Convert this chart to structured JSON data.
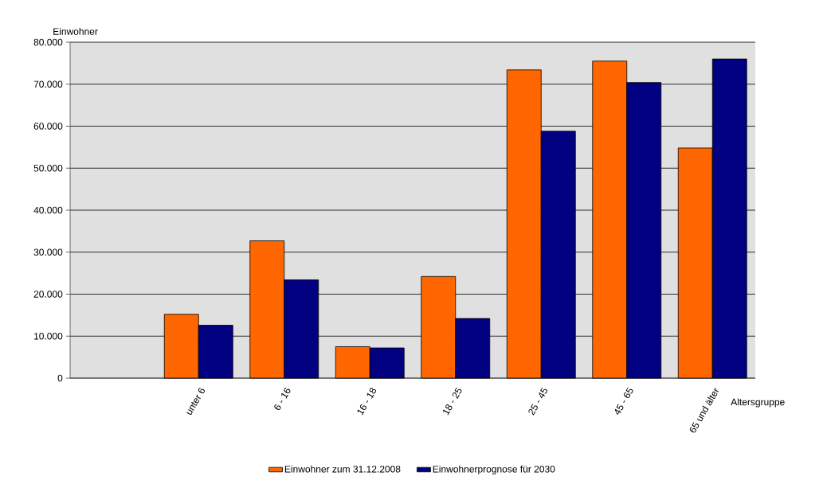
{
  "chart_data": {
    "type": "bar",
    "ylabel": "Einwohner",
    "xlabel": "Altersgruppe",
    "categories": [
      null,
      "unter 6",
      "6 - 16",
      "16 - 18",
      "18 - 25",
      "25 - 45",
      "45 - 65",
      "65 und älter"
    ],
    "series": [
      {
        "name": "Einwohner zum 31.12.2008",
        "color": "#ff6600",
        "values": [
          null,
          15200,
          32700,
          7500,
          24200,
          73400,
          75500,
          54800
        ]
      },
      {
        "name": "Einwohnerprognose für 2030",
        "color": "#000080",
        "values": [
          null,
          12600,
          23400,
          7200,
          14200,
          58800,
          70400,
          76000
        ]
      }
    ],
    "ylim": [
      0,
      80000
    ],
    "yticks": [
      0,
      {
        "value": 10000,
        "label": "10.000"
      },
      {
        "value": 20000,
        "label": "20.000"
      },
      {
        "value": 30000,
        "label": "30.000"
      },
      {
        "value": 40000,
        "label": "40.000"
      },
      {
        "value": 50000,
        "label": "50.000"
      },
      {
        "value": 60000,
        "label": "60.000"
      },
      {
        "value": 70000,
        "label": "70.000"
      },
      {
        "value": 80000,
        "label": "80.000"
      }
    ],
    "grid": "y",
    "legend": "bottom"
  }
}
